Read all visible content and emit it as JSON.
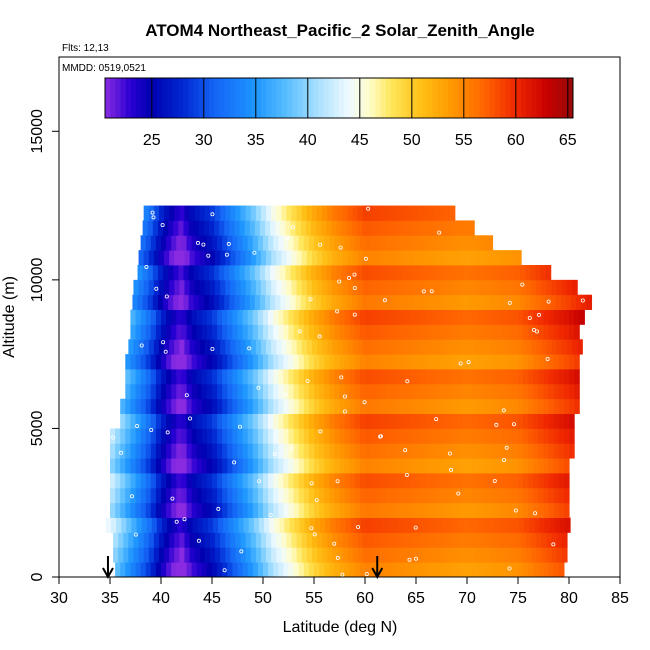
{
  "chart_data": {
    "type": "heatmap",
    "title": "ATOM4 Northeast_Pacific_2 Solar_Zenith_Angle",
    "annotations": [
      "Flts: 12,13",
      "MMDD: 0519,0521"
    ],
    "xlabel": "Latitude (deg N)",
    "ylabel": "Altitude (m)",
    "xlim": [
      30,
      85
    ],
    "ylim": [
      0,
      17500
    ],
    "x_ticks": [
      30,
      35,
      40,
      45,
      50,
      55,
      60,
      65,
      70,
      75,
      80,
      85
    ],
    "y_ticks": [
      0,
      5000,
      10000,
      15000
    ],
    "colorbar": {
      "range": [
        20.5,
        65.5
      ],
      "ticks": [
        25,
        30,
        35,
        40,
        45,
        50,
        55,
        60,
        65
      ],
      "placement": "top-inside"
    },
    "arrows_lat": [
      34.8,
      61.2
    ],
    "profile_layers": [
      {
        "alt": 250,
        "lat_min": 35.5,
        "lat_max": 79.5
      },
      {
        "alt": 750,
        "lat_min": 35.3,
        "lat_max": 79.5
      },
      {
        "alt": 1250,
        "lat_min": 35.3,
        "lat_max": 79.8
      },
      {
        "alt": 1750,
        "lat_min": 34.6,
        "lat_max": 79.8
      },
      {
        "alt": 2250,
        "lat_min": 35.0,
        "lat_max": 80.0
      },
      {
        "alt": 2750,
        "lat_min": 35.0,
        "lat_max": 80.0
      },
      {
        "alt": 3250,
        "lat_min": 35.0,
        "lat_max": 80.0
      },
      {
        "alt": 3750,
        "lat_min": 35.0,
        "lat_max": 80.0
      },
      {
        "alt": 4250,
        "lat_min": 35.0,
        "lat_max": 80.2
      },
      {
        "alt": 4750,
        "lat_min": 35.0,
        "lat_max": 80.2
      },
      {
        "alt": 5250,
        "lat_min": 36.0,
        "lat_max": 80.4
      },
      {
        "alt": 5750,
        "lat_min": 36.0,
        "lat_max": 80.6
      },
      {
        "alt": 6250,
        "lat_min": 36.5,
        "lat_max": 80.6
      },
      {
        "alt": 6750,
        "lat_min": 36.5,
        "lat_max": 80.8
      },
      {
        "alt": 7250,
        "lat_min": 36.5,
        "lat_max": 81.0
      },
      {
        "alt": 7750,
        "lat_min": 36.8,
        "lat_max": 81.0
      },
      {
        "alt": 8250,
        "lat_min": 37.0,
        "lat_max": 81.0
      },
      {
        "alt": 8750,
        "lat_min": 37.0,
        "lat_max": 81.2
      },
      {
        "alt": 9250,
        "lat_min": 37.2,
        "lat_max": 81.8
      },
      {
        "alt": 9750,
        "lat_min": 37.3,
        "lat_max": 80.5
      },
      {
        "alt": 10250,
        "lat_min": 37.7,
        "lat_max": 78.0
      },
      {
        "alt": 10750,
        "lat_min": 37.8,
        "lat_max": 75.0
      },
      {
        "alt": 11250,
        "lat_min": 38.0,
        "lat_max": 72.5
      },
      {
        "alt": 11750,
        "lat_min": 38.2,
        "lat_max": 70.5
      },
      {
        "alt": 12250,
        "lat_min": 38.3,
        "lat_max": 68.5
      }
    ],
    "sza_vs_latitude": {
      "lat": [
        35,
        37,
        39,
        40,
        41,
        42,
        43,
        45,
        47,
        49,
        51,
        53,
        55,
        57,
        60,
        65,
        70,
        75,
        80,
        82
      ],
      "sza": [
        42,
        36,
        30,
        26,
        23,
        21,
        24,
        27,
        32,
        37,
        43,
        47,
        51,
        54,
        57,
        56,
        55,
        56,
        60,
        62
      ]
    }
  }
}
